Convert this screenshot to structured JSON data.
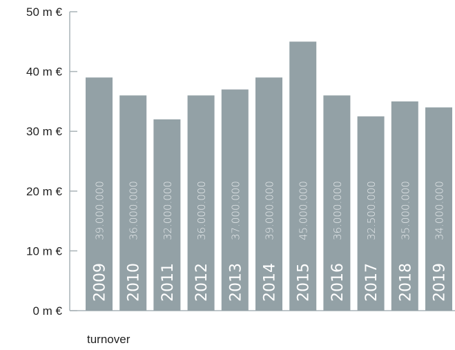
{
  "chart_data": {
    "type": "bar",
    "categories": [
      "2009",
      "2010",
      "2011",
      "2012",
      "2013",
      "2014",
      "2015",
      "2016",
      "2017",
      "2018",
      "2019"
    ],
    "values": [
      39000000,
      36000000,
      32000000,
      36000000,
      37000000,
      39000000,
      45000000,
      36000000,
      32500000,
      35000000,
      34000000
    ],
    "value_labels": [
      "39.000.000",
      "36.000.000",
      "32.000.000",
      "36.000.000",
      "37.000.000",
      "39.000.000",
      "45.000.000",
      "36.000.000",
      "32.500.000",
      "35.000.000",
      "34.000.000"
    ],
    "ylim": [
      0,
      50000000
    ],
    "yticks": [
      0,
      10000000,
      20000000,
      30000000,
      40000000,
      50000000
    ],
    "ytick_labels": [
      "0 m €",
      "10 m €",
      "20 m €",
      "30 m €",
      "40 m €",
      "50 m €"
    ],
    "legend": "turnover",
    "colors": {
      "bar": "#93a1a6",
      "axis": "#a9b3b7",
      "text": "#222222"
    },
    "grid": false
  }
}
